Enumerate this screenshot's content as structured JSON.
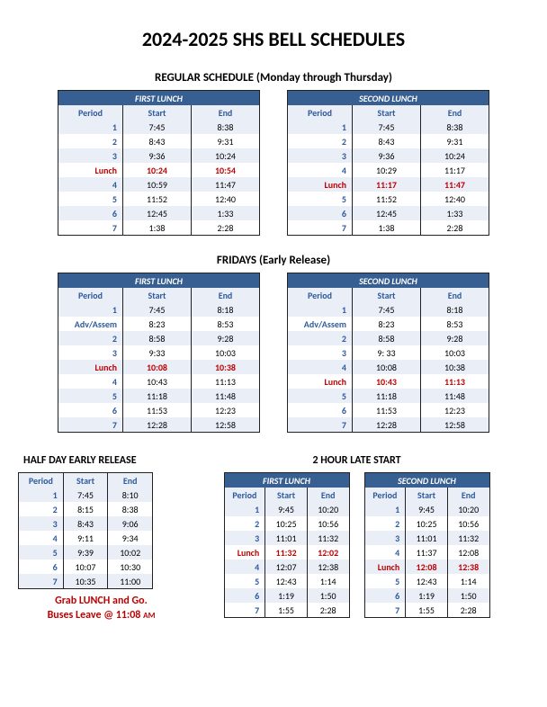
{
  "title": "2024-2025 SHS BELL SCHEDULES",
  "regular": {
    "heading": "REGULAR SCHEDULE (Monday through Thursday)",
    "first": {
      "banner": "FIRST LUNCH",
      "cols": [
        "Period",
        "Start",
        "End"
      ],
      "rows": [
        {
          "p": "1",
          "s": "7:45",
          "e": "8:38",
          "lunch": false
        },
        {
          "p": "2",
          "s": "8:43",
          "e": "9:31",
          "lunch": false
        },
        {
          "p": "3",
          "s": "9:36",
          "e": "10:24",
          "lunch": false
        },
        {
          "p": "Lunch",
          "s": "10:24",
          "e": "10:54",
          "lunch": true
        },
        {
          "p": "4",
          "s": "10:59",
          "e": "11:47",
          "lunch": false
        },
        {
          "p": "5",
          "s": "11:52",
          "e": "12:40",
          "lunch": false
        },
        {
          "p": "6",
          "s": "12:45",
          "e": "1:33",
          "lunch": false
        },
        {
          "p": "7",
          "s": "1:38",
          "e": "2:28",
          "lunch": false
        }
      ]
    },
    "second": {
      "banner": "SECOND LUNCH",
      "cols": [
        "Period",
        "Start",
        "End"
      ],
      "rows": [
        {
          "p": "1",
          "s": "7:45",
          "e": "8:38",
          "lunch": false
        },
        {
          "p": "2",
          "s": "8:43",
          "e": "9:31",
          "lunch": false
        },
        {
          "p": "3",
          "s": "9:36",
          "e": "10:24",
          "lunch": false
        },
        {
          "p": "4",
          "s": "10:29",
          "e": "11:17",
          "lunch": false
        },
        {
          "p": "Lunch",
          "s": "11:17",
          "e": "11:47",
          "lunch": true
        },
        {
          "p": "5",
          "s": "11:52",
          "e": "12:40",
          "lunch": false
        },
        {
          "p": "6",
          "s": "12:45",
          "e": "1:33",
          "lunch": false
        },
        {
          "p": "7",
          "s": "1:38",
          "e": "2:28",
          "lunch": false
        }
      ]
    }
  },
  "friday": {
    "heading": "FRIDAYS (Early Release)",
    "first": {
      "banner": "FIRST LUNCH",
      "cols": [
        "Period",
        "Start",
        "End"
      ],
      "rows": [
        {
          "p": "1",
          "s": "7:45",
          "e": "8:18",
          "lunch": false
        },
        {
          "p": "Adv/Assem",
          "s": "8:23",
          "e": "8:53",
          "lunch": false
        },
        {
          "p": "2",
          "s": "8:58",
          "e": "9:28",
          "lunch": false
        },
        {
          "p": "3",
          "s": "9:33",
          "e": "10:03",
          "lunch": false
        },
        {
          "p": "Lunch",
          "s": "10:08",
          "e": "10:38",
          "lunch": true
        },
        {
          "p": "4",
          "s": "10:43",
          "e": "11:13",
          "lunch": false
        },
        {
          "p": "5",
          "s": "11:18",
          "e": "11:48",
          "lunch": false
        },
        {
          "p": "6",
          "s": "11:53",
          "e": "12:23",
          "lunch": false
        },
        {
          "p": "7",
          "s": "12:28",
          "e": "12:58",
          "lunch": false
        }
      ]
    },
    "second": {
      "banner": "SECOND LUNCH",
      "cols": [
        "Period",
        "Start",
        "End"
      ],
      "rows": [
        {
          "p": "1",
          "s": "7:45",
          "e": "8:18",
          "lunch": false
        },
        {
          "p": "Adv/Assem",
          "s": "8:23",
          "e": "8:53",
          "lunch": false
        },
        {
          "p": "2",
          "s": "8:58",
          "e": "9:28",
          "lunch": false
        },
        {
          "p": "3",
          "s": "9: 33",
          "e": "10:03",
          "lunch": false
        },
        {
          "p": "4",
          "s": "10:08",
          "e": "10:38",
          "lunch": false
        },
        {
          "p": "Lunch",
          "s": "10:43",
          "e": "11:13",
          "lunch": true
        },
        {
          "p": "5",
          "s": "11:18",
          "e": "11:48",
          "lunch": false
        },
        {
          "p": "6",
          "s": "11:53",
          "e": "12:23",
          "lunch": false
        },
        {
          "p": "7",
          "s": "12:28",
          "e": "12:58",
          "lunch": false
        }
      ]
    }
  },
  "half": {
    "heading": "HALF DAY EARLY RELEASE",
    "cols": [
      "Period",
      "Start",
      "End"
    ],
    "rows": [
      {
        "p": "1",
        "s": "7:45",
        "e": "8:10",
        "lunch": false
      },
      {
        "p": "2",
        "s": "8:15",
        "e": "8:38",
        "lunch": false
      },
      {
        "p": "3",
        "s": "8:43",
        "e": "9:06",
        "lunch": false
      },
      {
        "p": "4",
        "s": "9:11",
        "e": "9:34",
        "lunch": false
      },
      {
        "p": "5",
        "s": "9:39",
        "e": "10:02",
        "lunch": false
      },
      {
        "p": "6",
        "s": "10:07",
        "e": "10:30",
        "lunch": false
      },
      {
        "p": "7",
        "s": "10:35",
        "e": "11:00",
        "lunch": false
      }
    ],
    "footer_line1": "Grab LUNCH and Go.",
    "footer_line2a": "Buses Leave @ 11:08",
    "footer_line2b": "AM"
  },
  "late": {
    "heading": "2 HOUR LATE START",
    "first": {
      "banner": "FIRST LUNCH",
      "cols": [
        "Period",
        "Start",
        "End"
      ],
      "rows": [
        {
          "p": "1",
          "s": "9:45",
          "e": "10:20",
          "lunch": false
        },
        {
          "p": "2",
          "s": "10:25",
          "e": "10:56",
          "lunch": false
        },
        {
          "p": "3",
          "s": "11:01",
          "e": "11:32",
          "lunch": false
        },
        {
          "p": "Lunch",
          "s": "11:32",
          "e": "12:02",
          "lunch": true
        },
        {
          "p": "4",
          "s": "12:07",
          "e": "12:38",
          "lunch": false
        },
        {
          "p": "5",
          "s": "12:43",
          "e": "1:14",
          "lunch": false
        },
        {
          "p": "6",
          "s": "1:19",
          "e": "1:50",
          "lunch": false
        },
        {
          "p": "7",
          "s": "1:55",
          "e": "2:28",
          "lunch": false
        }
      ]
    },
    "second": {
      "banner": "SECOND LUNCH",
      "cols": [
        "Period",
        "Start",
        "End"
      ],
      "rows": [
        {
          "p": "1",
          "s": "9:45",
          "e": "10:20",
          "lunch": false
        },
        {
          "p": "2",
          "s": "10:25",
          "e": "10:56",
          "lunch": false
        },
        {
          "p": "3",
          "s": "11:01",
          "e": "11:32",
          "lunch": false
        },
        {
          "p": "4",
          "s": "11:37",
          "e": "12:08",
          "lunch": false
        },
        {
          "p": "Lunch",
          "s": "12:08",
          "e": "12:38",
          "lunch": true
        },
        {
          "p": "5",
          "s": "12:43",
          "e": "1:14",
          "lunch": false
        },
        {
          "p": "6",
          "s": "1:19",
          "e": "1:50",
          "lunch": false
        },
        {
          "p": "7",
          "s": "1:55",
          "e": "2:28",
          "lunch": false
        }
      ]
    }
  },
  "colors": {
    "banner_bg": "#375f91",
    "banner_fg": "#ffffff",
    "header_bg": "#e9eef7",
    "header_fg": "#2e5a9c",
    "stripe_odd": "#e9eef7",
    "stripe_even": "#ffffff",
    "lunch_fg": "#c00000",
    "border": "#222222"
  }
}
